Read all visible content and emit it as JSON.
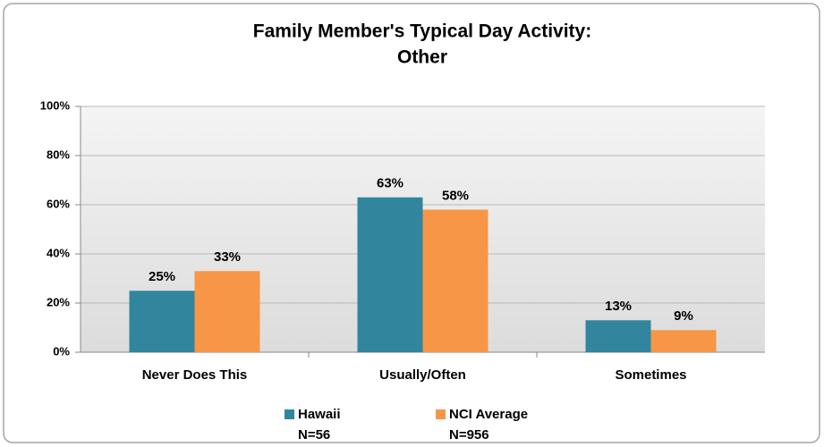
{
  "chart_data": {
    "type": "bar",
    "title": [
      "Family Member's Typical Day Activity:",
      "Other"
    ],
    "categories": [
      "Never Does This",
      "Usually/Often",
      "Sometimes"
    ],
    "series": [
      {
        "name": "Hawaii",
        "note": "N=56",
        "color": "#31859c",
        "values": [
          25,
          63,
          13
        ],
        "value_labels": [
          "25%",
          "63%",
          "13%"
        ]
      },
      {
        "name": "NCI Average",
        "note": "N=956",
        "color": "#f79646",
        "values": [
          33,
          58,
          9
        ],
        "value_labels": [
          "33%",
          "58%",
          "9%"
        ]
      }
    ],
    "ylim": [
      0,
      100
    ],
    "yticks": [
      {
        "value": 0,
        "label": "0%"
      },
      {
        "value": 20,
        "label": "20%"
      },
      {
        "value": 40,
        "label": "40%"
      },
      {
        "value": 60,
        "label": "60%"
      },
      {
        "value": 80,
        "label": "80%"
      },
      {
        "value": 100,
        "label": "100%"
      }
    ],
    "grid": true,
    "legend": "bottom"
  }
}
